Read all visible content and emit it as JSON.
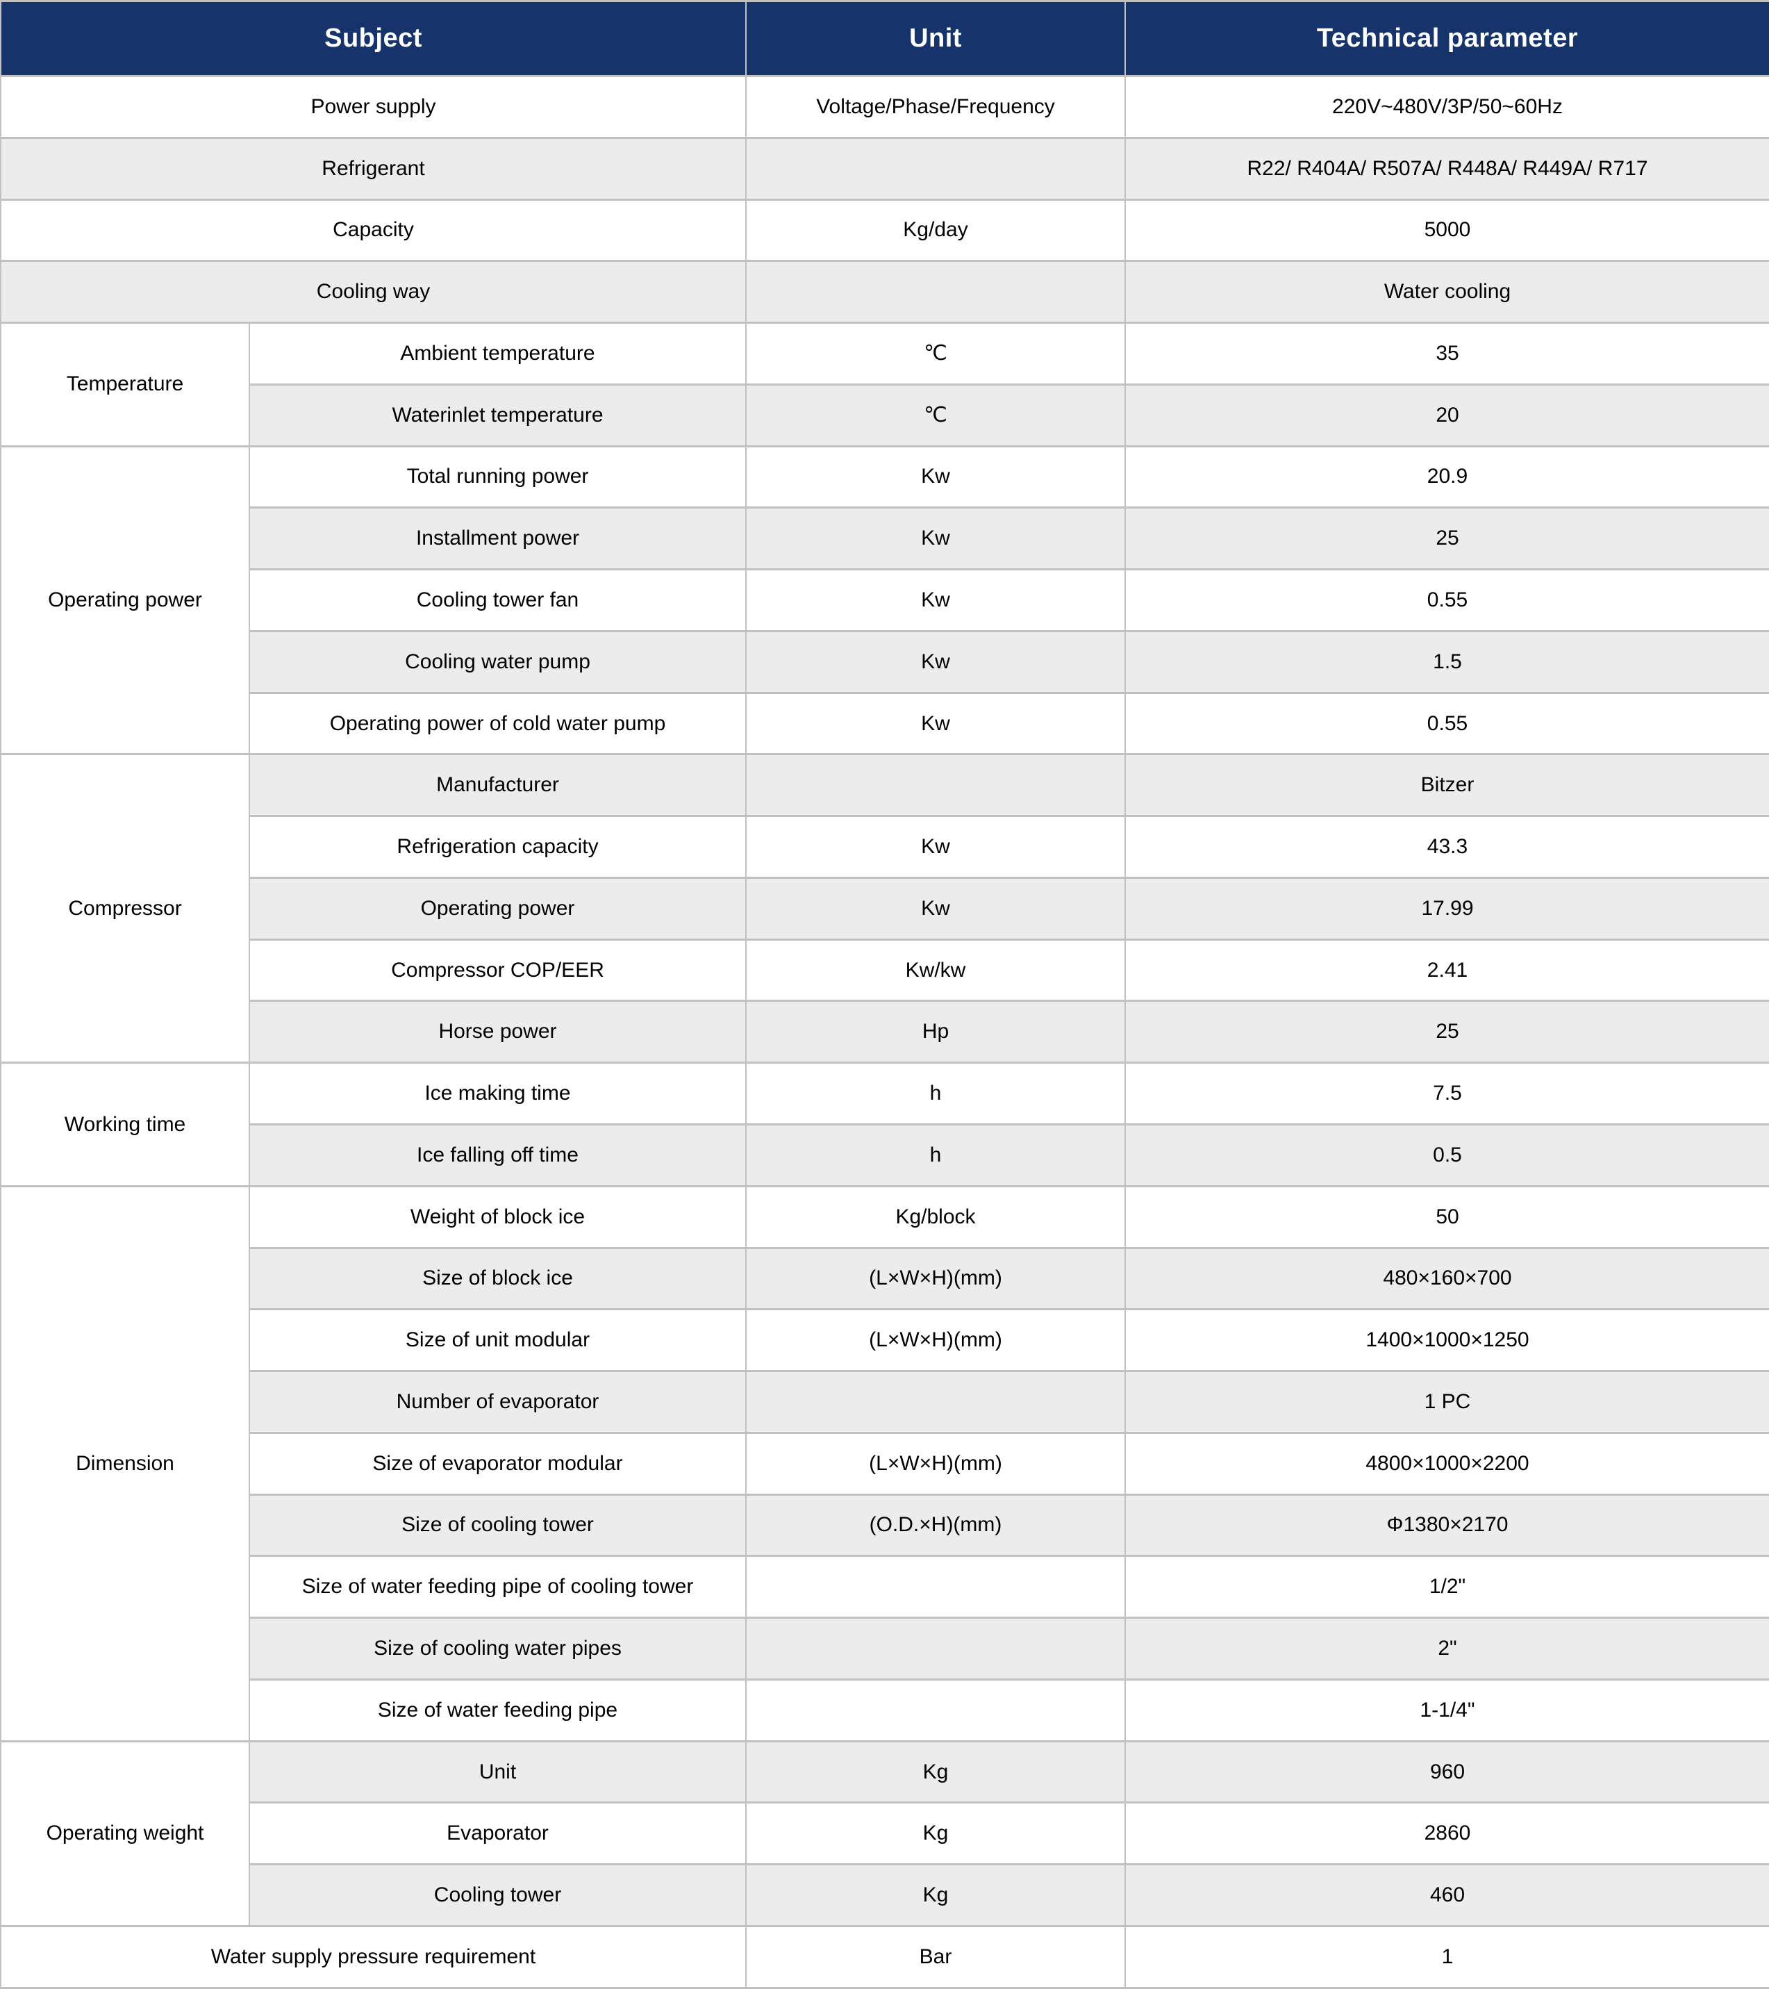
{
  "colors": {
    "header_bg": "#17336b",
    "header_text": "#ffffff",
    "row_bg": "#ffffff",
    "row_alt_bg": "#ececec",
    "border": "#c1c1c1",
    "body_text": "#000000"
  },
  "chart_data": {
    "type": "table",
    "columns": [
      "Subject",
      "Unit",
      "Technical parameter"
    ],
    "rows": [
      {
        "full": true,
        "subject": "Power supply",
        "unit": "Voltage/Phase/Frequency",
        "value": "220V~480V/3P/50~60Hz"
      },
      {
        "full": true,
        "subject": "Refrigerant",
        "unit": "",
        "value": "R22/ R404A/ R507A/ R448A/ R449A/ R717"
      },
      {
        "full": true,
        "subject": "Capacity",
        "unit": "Kg/day",
        "value": "5000"
      },
      {
        "full": true,
        "subject": "Cooling way",
        "unit": "",
        "value": "Water cooling"
      },
      {
        "group": "Temperature",
        "group_span": 2,
        "subject": "Ambient temperature",
        "unit": "℃",
        "value": "35"
      },
      {
        "subject": "Waterinlet temperature",
        "unit": "℃",
        "value": "20"
      },
      {
        "group": "Operating power",
        "group_span": 5,
        "subject": "Total running power",
        "unit": "Kw",
        "value": "20.9"
      },
      {
        "subject": "Installment power",
        "unit": "Kw",
        "value": "25"
      },
      {
        "subject": "Cooling tower fan",
        "unit": "Kw",
        "value": "0.55"
      },
      {
        "subject": "Cooling water pump",
        "unit": "Kw",
        "value": "1.5"
      },
      {
        "subject": "Operating power of cold water pump",
        "unit": "Kw",
        "value": "0.55"
      },
      {
        "group": "Compressor",
        "group_span": 5,
        "subject": "Manufacturer",
        "unit": "",
        "value": "Bitzer"
      },
      {
        "subject": "Refrigeration capacity",
        "unit": "Kw",
        "value": "43.3"
      },
      {
        "subject": "Operating power",
        "unit": "Kw",
        "value": "17.99"
      },
      {
        "subject": "Compressor COP/EER",
        "unit": "Kw/kw",
        "value": "2.41"
      },
      {
        "subject": "Horse power",
        "unit": "Hp",
        "value": "25"
      },
      {
        "group": "Working time",
        "group_span": 2,
        "subject": "Ice making time",
        "unit": "h",
        "value": "7.5"
      },
      {
        "subject": "Ice falling off time",
        "unit": "h",
        "value": "0.5"
      },
      {
        "group": "Dimension",
        "group_span": 9,
        "subject": "Weight of block ice",
        "unit": "Kg/block",
        "value": "50"
      },
      {
        "subject": "Size of block ice",
        "unit": "(L×W×H)(mm)",
        "value": "480×160×700"
      },
      {
        "subject": "Size of unit modular",
        "unit": "(L×W×H)(mm)",
        "value": "1400×1000×1250"
      },
      {
        "subject": "Number of evaporator",
        "unit": "",
        "value": "1 PC"
      },
      {
        "subject": "Size of evaporator modular",
        "unit": "(L×W×H)(mm)",
        "value": "4800×1000×2200"
      },
      {
        "subject": "Size of cooling tower",
        "unit": "(O.D.×H)(mm)",
        "value": "Φ1380×2170"
      },
      {
        "subject": "Size of water feeding pipe of cooling tower",
        "unit": "",
        "value": "1/2\""
      },
      {
        "subject": "Size of cooling water pipes",
        "unit": "",
        "value": "2\""
      },
      {
        "subject": "Size of water feeding pipe",
        "unit": "",
        "value": "1-1/4\""
      },
      {
        "group": "Operating weight",
        "group_span": 3,
        "subject": "Unit",
        "unit": "Kg",
        "value": "960"
      },
      {
        "subject": "Evaporator",
        "unit": "Kg",
        "value": "2860"
      },
      {
        "subject": "Cooling tower",
        "unit": "Kg",
        "value": "460"
      },
      {
        "full": true,
        "subject": "Water supply pressure requirement",
        "unit": "Bar",
        "value": "1"
      }
    ]
  }
}
